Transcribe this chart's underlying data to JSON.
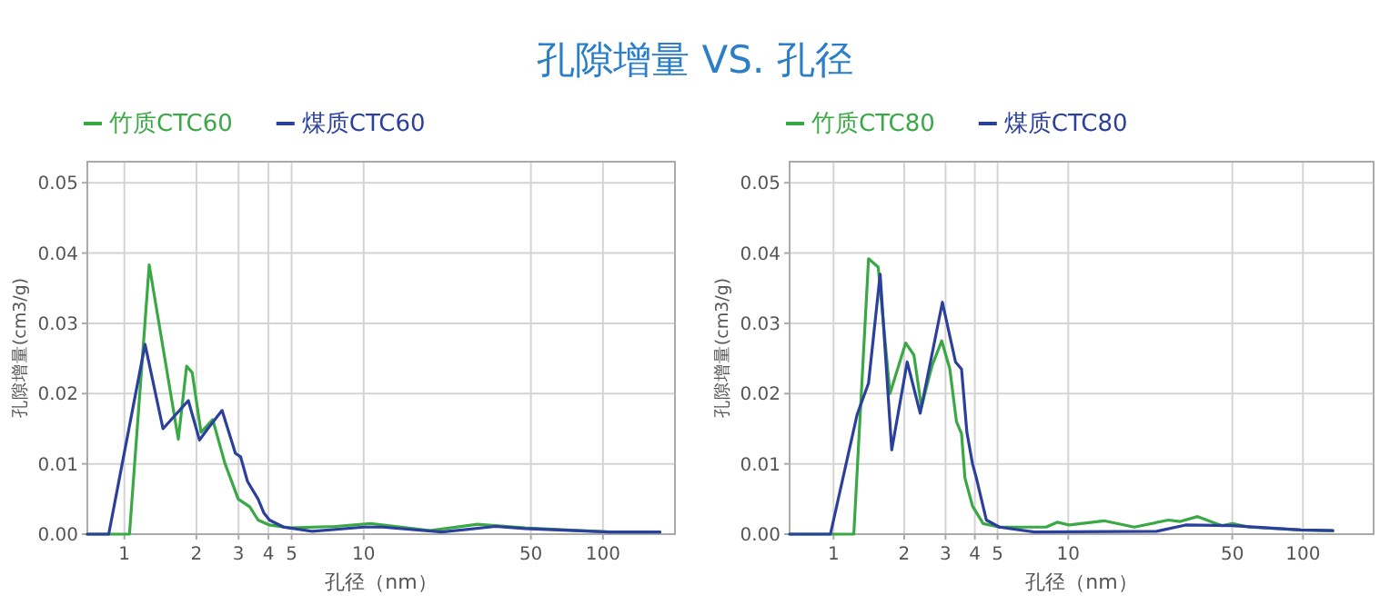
{
  "chart_data": [
    {
      "type": "line",
      "title": "孔隙增量 VS. 孔径",
      "xlabel": "孔径（nm）",
      "ylabel": "孔隙增量(cm3/g)",
      "log": "x",
      "grid": true,
      "legend": "top left",
      "line_style": "solid",
      "marker": "none",
      "xlim": [
        0.7,
        200
      ],
      "xticks": [
        1,
        2,
        3,
        4,
        5,
        10,
        50,
        100
      ],
      "ylim": [
        0,
        0.053
      ],
      "yticks": [
        {
          "value": 0,
          "label": "0.00"
        },
        {
          "value": 0.01,
          "label": "0.01"
        },
        {
          "value": 0.02,
          "label": "0.02"
        },
        {
          "value": 0.03,
          "label": "0.03"
        },
        {
          "value": 0.04,
          "label": "0.04"
        },
        {
          "value": 0.05,
          "label": "0.05"
        }
      ],
      "series": [
        {
          "name": "竹质CTC60",
          "color": "#3aa845",
          "x": [
            0.7,
            1.05,
            1.27,
            1.68,
            1.82,
            1.92,
            2.09,
            2.34,
            2.63,
            2.99,
            3.34,
            3.62,
            4.04,
            4.93,
            7.6,
            10.7,
            18.9,
            29.9,
            47.2,
            106,
            173
          ],
          "values": [
            0,
            0,
            0.0383,
            0.0135,
            0.0239,
            0.023,
            0.0145,
            0.0163,
            0.0101,
            0.005,
            0.0039,
            0.002,
            0.0013,
            0.0009,
            0.0011,
            0.0015,
            0.0005,
            0.0014,
            0.0009,
            0.0003,
            0.0003
          ]
        },
        {
          "name": "煤质CTC60",
          "color": "#2b3f9c",
          "x": [
            0.7,
            0.86,
            1.22,
            1.45,
            1.85,
            2.06,
            2.23,
            2.56,
            2.91,
            3.06,
            3.27,
            3.62,
            3.83,
            4.04,
            4.63,
            6.09,
            10,
            12,
            21.2,
            35.5,
            47.2,
            106,
            173
          ],
          "values": [
            0,
            0,
            0.027,
            0.015,
            0.019,
            0.0134,
            0.015,
            0.0176,
            0.0115,
            0.011,
            0.0075,
            0.005,
            0.003,
            0.002,
            0.001,
            0.0004,
            0.001,
            0.001,
            0.0003,
            0.0011,
            0.0008,
            0.0003,
            0.0003
          ]
        }
      ]
    },
    {
      "type": "line",
      "xlabel": "孔径（nm）",
      "ylabel": "孔隙增量(cm3/g)",
      "log": "x",
      "grid": true,
      "legend": "top left",
      "line_style": "solid",
      "marker": "none",
      "xlim": [
        0.65,
        200
      ],
      "xticks": [
        1,
        2,
        3,
        4,
        5,
        10,
        50,
        100
      ],
      "ylim": [
        0,
        0.053
      ],
      "yticks": [
        {
          "value": 0,
          "label": "0.00"
        },
        {
          "value": 0.01,
          "label": "0.01"
        },
        {
          "value": 0.02,
          "label": "0.02"
        },
        {
          "value": 0.03,
          "label": "0.03"
        },
        {
          "value": 0.04,
          "label": "0.04"
        },
        {
          "value": 0.05,
          "label": "0.05"
        }
      ],
      "series": [
        {
          "name": "竹质CTC80",
          "color": "#3aa845",
          "x": [
            0.65,
            1.22,
            1.41,
            1.55,
            1.74,
            2.03,
            2.2,
            2.37,
            2.63,
            2.89,
            3.13,
            3.34,
            3.51,
            3.63,
            3.91,
            4.34,
            5.09,
            8.05,
            9.0,
            10.1,
            14.2,
            19.1,
            26.7,
            30.0,
            35.6,
            45.2,
            50,
            59,
            98,
            134
          ],
          "values": [
            0,
            0,
            0.0392,
            0.038,
            0.02,
            0.0272,
            0.0255,
            0.0181,
            0.024,
            0.0275,
            0.0235,
            0.016,
            0.0143,
            0.008,
            0.004,
            0.0015,
            0.001,
            0.001,
            0.0017,
            0.0013,
            0.0019,
            0.001,
            0.002,
            0.0018,
            0.0025,
            0.0012,
            0.0015,
            0.001,
            0.0006,
            0.0005
          ]
        },
        {
          "name": "煤质CTC80",
          "color": "#2b3f9c",
          "x": [
            0.65,
            0.97,
            1.26,
            1.41,
            1.58,
            1.77,
            2.06,
            2.34,
            2.91,
            3.31,
            3.51,
            3.7,
            3.91,
            4.06,
            4.48,
            5.09,
            7.17,
            23.8,
            31.6,
            50,
            98,
            134
          ],
          "values": [
            0,
            0,
            0.017,
            0.0215,
            0.037,
            0.012,
            0.0245,
            0.0172,
            0.033,
            0.0245,
            0.0235,
            0.0145,
            0.01,
            0.008,
            0.002,
            0.001,
            0.0003,
            0.0004,
            0.0013,
            0.0012,
            0.0006,
            0.0005
          ]
        }
      ]
    }
  ]
}
